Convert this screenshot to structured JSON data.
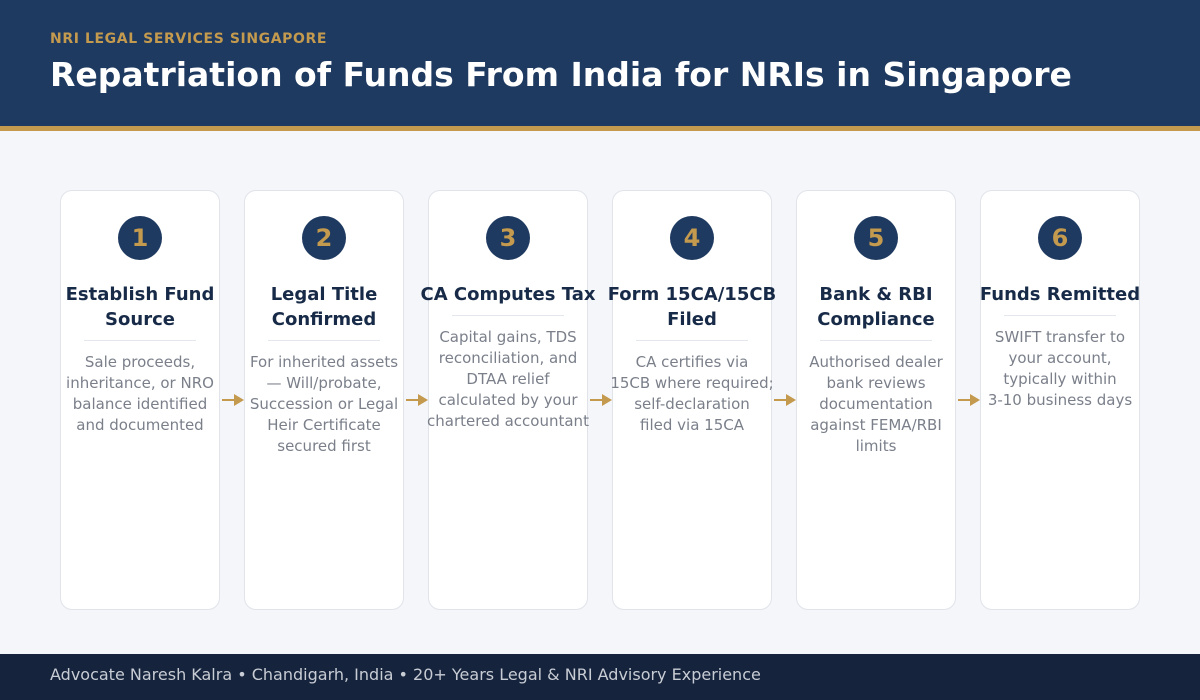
{
  "header": {
    "kicker": "NRI LEGAL SERVICES SINGAPORE",
    "title": "Repatriation of Funds From India for NRIs in Singapore"
  },
  "colors": {
    "navy": "#1f3a60",
    "gold": "#c49a4e",
    "footer": "#15233c",
    "background": "#f5f6fa"
  },
  "steps": [
    {
      "number": "1",
      "title_lines": [
        "Establish Fund",
        "Source"
      ],
      "description_lines": [
        "Sale proceeds,",
        "inheritance, or NRO",
        "balance identified",
        "and documented"
      ]
    },
    {
      "number": "2",
      "title_lines": [
        "Legal Title",
        "Confirmed"
      ],
      "description_lines": [
        "For inherited assets",
        "— Will/probate,",
        "Succession or Legal",
        "Heir Certificate",
        "secured first"
      ]
    },
    {
      "number": "3",
      "title_lines": [
        "CA Computes Tax"
      ],
      "description_lines": [
        "Capital gains, TDS",
        "reconciliation, and",
        "DTAA relief",
        "calculated by your",
        "chartered accountant"
      ]
    },
    {
      "number": "4",
      "title_lines": [
        "Form 15CA/15CB",
        "Filed"
      ],
      "description_lines": [
        "CA certifies via",
        "15CB where required;",
        "self-declaration",
        "filed via 15CA"
      ]
    },
    {
      "number": "5",
      "title_lines": [
        "Bank & RBI",
        "Compliance"
      ],
      "description_lines": [
        "Authorised dealer",
        "bank reviews",
        "documentation",
        "against FEMA/RBI",
        "limits"
      ]
    },
    {
      "number": "6",
      "title_lines": [
        "Funds Remitted"
      ],
      "description_lines": [
        "SWIFT transfer to",
        "your account,",
        "typically within",
        "3-10 business days"
      ]
    }
  ],
  "footer": {
    "text": "Advocate Naresh Kalra  •  Chandigarh, India  •  20+ Years Legal & NRI Advisory Experience"
  }
}
